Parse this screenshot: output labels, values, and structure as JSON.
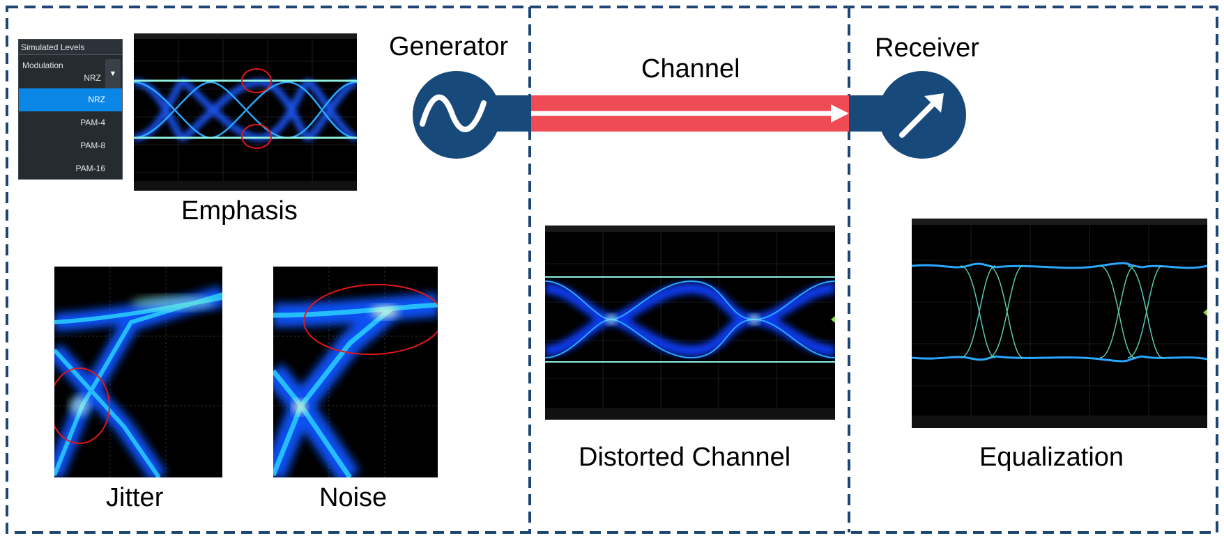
{
  "labels": {
    "generator": "Generator",
    "channel": "Channel",
    "receiver": "Receiver",
    "emphasis": "Emphasis",
    "jitter": "Jitter",
    "noise": "Noise",
    "distorted_channel": "Distorted Channel",
    "equalization": "Equalization"
  },
  "dropdown": {
    "title": "Simulated Levels",
    "field_label": "Modulation",
    "value": "NRZ",
    "options": [
      "NRZ",
      "PAM-4",
      "PAM-8",
      "PAM-16"
    ],
    "selected_index": 0
  },
  "colors": {
    "border_dash": "#1e4673",
    "navy": "#17497a",
    "channel_band": "#ef4b55",
    "arrow": "#ffffff",
    "highlight_circle": "#e3161c",
    "eye_trace": "#2aa8ff",
    "eye_core": "#bfffe0",
    "selected_option": "#0a86e6"
  },
  "icons": {
    "generator": "sine-wave-icon",
    "receiver": "diagonal-arrow-icon",
    "dropdown": "triangle-down-icon"
  }
}
